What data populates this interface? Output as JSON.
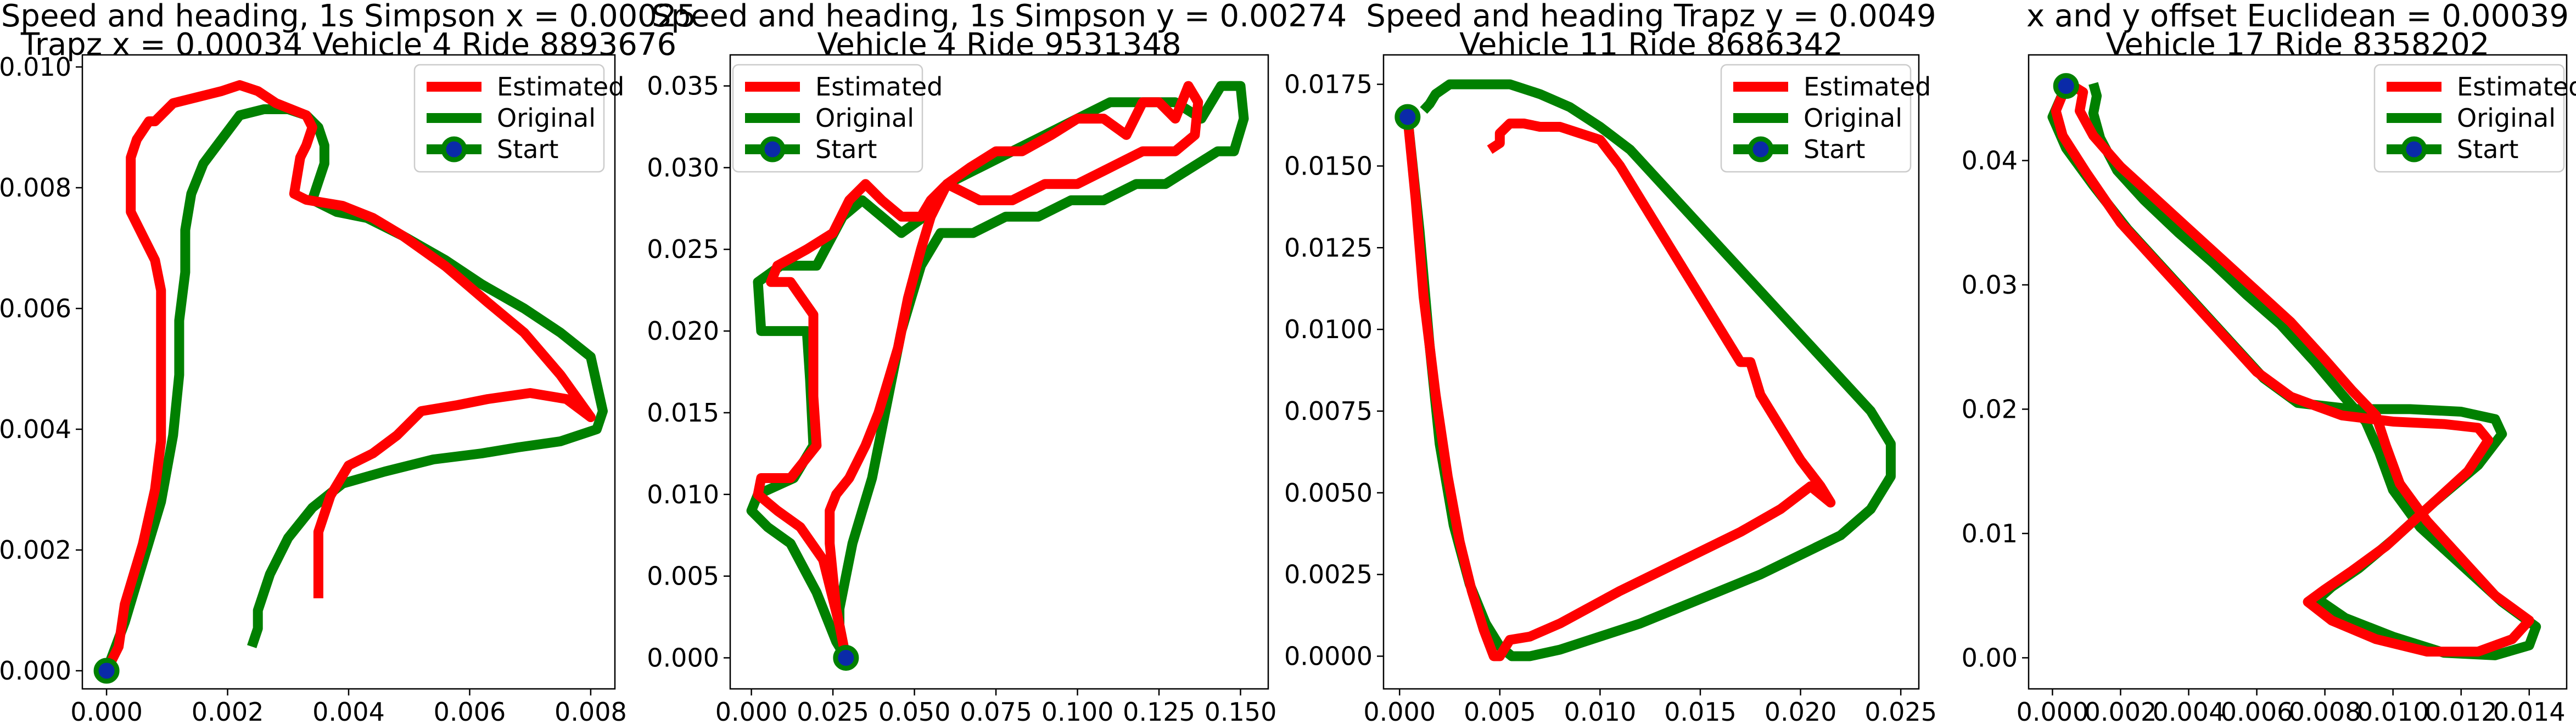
{
  "chart_data": [
    {
      "type": "line",
      "title": "Speed and heading, 1s Simpson x = 0.00025\nTrapz x = 0.00034 Vehicle 4 Ride 8893676",
      "xlim": [
        -0.0004,
        0.0084
      ],
      "ylim": [
        -0.0003,
        0.0102
      ],
      "xticks": [
        0.0,
        0.002,
        0.004,
        0.006,
        0.008
      ],
      "xtick_labels": [
        "0.000",
        "0.002",
        "0.004",
        "0.006",
        "0.008"
      ],
      "yticks": [
        0.0,
        0.002,
        0.004,
        0.006,
        0.008,
        0.01
      ],
      "ytick_labels": [
        "0.000",
        "0.002",
        "0.004",
        "0.006",
        "0.008",
        "0.010"
      ],
      "legend": {
        "position": "top-right",
        "entries": [
          "Estimated",
          "Original",
          "Start"
        ]
      },
      "series": [
        {
          "name": "Estimated",
          "color": "#ff0000",
          "x": [
            0.0,
            0.0002,
            0.0003,
            0.0006,
            0.0008,
            0.0009,
            0.0009,
            0.0009,
            0.0009,
            0.0008,
            0.0006,
            0.0004,
            0.0004,
            0.0004,
            0.0005,
            0.0007,
            0.0008,
            0.0011,
            0.0015,
            0.0019,
            0.0022,
            0.0025,
            0.0028,
            0.0033,
            0.0034,
            0.0033,
            0.0032,
            0.0031,
            0.0033,
            0.0039,
            0.0044,
            0.0049,
            0.0056,
            0.0063,
            0.0069,
            0.0075,
            0.008,
            0.0076,
            0.007,
            0.0063,
            0.0058,
            0.0052,
            0.0048,
            0.0044,
            0.004,
            0.0037,
            0.0035,
            0.0035
          ],
          "y": [
            0.0,
            0.0004,
            0.0011,
            0.0021,
            0.003,
            0.0038,
            0.0046,
            0.0055,
            0.0063,
            0.0068,
            0.0072,
            0.0076,
            0.0081,
            0.0085,
            0.0088,
            0.0091,
            0.0091,
            0.0094,
            0.0095,
            0.0096,
            0.0097,
            0.0096,
            0.0094,
            0.0092,
            0.009,
            0.0087,
            0.0085,
            0.0079,
            0.0078,
            0.0077,
            0.0075,
            0.0072,
            0.0067,
            0.0061,
            0.0056,
            0.0049,
            0.0042,
            0.0045,
            0.0046,
            0.0045,
            0.0044,
            0.0043,
            0.0039,
            0.0036,
            0.0034,
            0.0029,
            0.0023,
            0.0012
          ]
        },
        {
          "name": "Original",
          "color": "#008000",
          "x": [
            0.0,
            0.0003,
            0.0006,
            0.0009,
            0.0011,
            0.0012,
            0.0012,
            0.0013,
            0.0013,
            0.0014,
            0.0016,
            0.0019,
            0.0022,
            0.0026,
            0.003,
            0.0033,
            0.0035,
            0.0036,
            0.0036,
            0.0035,
            0.0034,
            0.0038,
            0.0043,
            0.0049,
            0.0056,
            0.0062,
            0.0069,
            0.0075,
            0.008,
            0.0082,
            0.0081,
            0.0075,
            0.0068,
            0.0062,
            0.0054,
            0.0046,
            0.0039,
            0.0034,
            0.003,
            0.0027,
            0.0025,
            0.0025,
            0.0024
          ],
          "y": [
            0.0,
            0.0008,
            0.0018,
            0.0028,
            0.0039,
            0.0049,
            0.0058,
            0.0066,
            0.0073,
            0.0079,
            0.0084,
            0.0088,
            0.0092,
            0.0093,
            0.0093,
            0.0092,
            0.009,
            0.0087,
            0.0084,
            0.0081,
            0.0078,
            0.0076,
            0.0075,
            0.0072,
            0.0068,
            0.0064,
            0.006,
            0.0056,
            0.0052,
            0.0043,
            0.004,
            0.0038,
            0.0037,
            0.0036,
            0.0035,
            0.0033,
            0.0031,
            0.0027,
            0.0022,
            0.0016,
            0.001,
            0.0007,
            0.0004
          ]
        }
      ],
      "start": {
        "x": 0.0,
        "y": 0.0
      }
    },
    {
      "type": "line",
      "title": "Speed and heading, 1s Simpson y = 0.00274\nVehicle 4 Ride 9531348",
      "xlim": [
        -0.0065,
        0.1585
      ],
      "ylim": [
        -0.0019,
        0.0369
      ],
      "xticks": [
        0.0,
        0.025,
        0.05,
        0.075,
        0.1,
        0.125,
        0.15
      ],
      "xtick_labels": [
        "0.000",
        "0.025",
        "0.050",
        "0.075",
        "0.100",
        "0.125",
        "0.150"
      ],
      "yticks": [
        0.0,
        0.005,
        0.01,
        0.015,
        0.02,
        0.025,
        0.03,
        0.035
      ],
      "ytick_labels": [
        "0.000",
        "0.005",
        "0.010",
        "0.015",
        "0.020",
        "0.025",
        "0.030",
        "0.035"
      ],
      "legend": {
        "position": "top-left",
        "entries": [
          "Estimated",
          "Original",
          "Start"
        ]
      },
      "series": [
        {
          "name": "Estimated",
          "color": "#ff0000",
          "x": [
            0.029,
            0.027,
            0.022,
            0.015,
            0.008,
            0.002,
            0.003,
            0.012,
            0.02,
            0.019,
            0.019,
            0.012,
            0.006,
            0.008,
            0.017,
            0.025,
            0.03,
            0.035,
            0.04,
            0.046,
            0.052,
            0.055,
            0.06,
            0.067,
            0.075,
            0.083,
            0.092,
            0.1,
            0.108,
            0.115,
            0.12,
            0.125,
            0.13,
            0.134,
            0.137,
            0.136,
            0.13,
            0.12,
            0.11,
            0.1,
            0.09,
            0.08,
            0.07,
            0.06,
            0.055,
            0.052,
            0.048,
            0.045,
            0.042,
            0.039,
            0.035,
            0.03,
            0.026,
            0.024,
            0.024,
            0.025,
            0.026,
            0.027,
            0.028,
            0.029
          ],
          "y": [
            0.0,
            0.002,
            0.006,
            0.008,
            0.009,
            0.01,
            0.011,
            0.011,
            0.013,
            0.016,
            0.021,
            0.023,
            0.023,
            0.024,
            0.025,
            0.026,
            0.028,
            0.029,
            0.028,
            0.027,
            0.027,
            0.028,
            0.029,
            0.03,
            0.031,
            0.031,
            0.032,
            0.033,
            0.033,
            0.032,
            0.034,
            0.034,
            0.033,
            0.035,
            0.034,
            0.032,
            0.031,
            0.031,
            0.03,
            0.029,
            0.029,
            0.028,
            0.028,
            0.029,
            0.027,
            0.025,
            0.022,
            0.019,
            0.017,
            0.015,
            0.013,
            0.011,
            0.01,
            0.009,
            0.007,
            0.005,
            0.003,
            0.002,
            0.001,
            0.0
          ]
        },
        {
          "name": "Original",
          "color": "#008000",
          "x": [
            0.029,
            0.026,
            0.02,
            0.012,
            0.005,
            0.0,
            0.002,
            0.013,
            0.019,
            0.018,
            0.017,
            0.01,
            0.003,
            0.002,
            0.009,
            0.02,
            0.028,
            0.034,
            0.04,
            0.046,
            0.053,
            0.06,
            0.07,
            0.08,
            0.09,
            0.1,
            0.11,
            0.12,
            0.13,
            0.138,
            0.144,
            0.15,
            0.151,
            0.148,
            0.143,
            0.135,
            0.127,
            0.118,
            0.108,
            0.098,
            0.088,
            0.078,
            0.068,
            0.058,
            0.052,
            0.049,
            0.046,
            0.043,
            0.04,
            0.037,
            0.034,
            0.031,
            0.029,
            0.028,
            0.027,
            0.027,
            0.028,
            0.029
          ],
          "y": [
            0.0,
            0.001,
            0.004,
            0.007,
            0.008,
            0.009,
            0.01,
            0.011,
            0.013,
            0.017,
            0.02,
            0.02,
            0.02,
            0.023,
            0.024,
            0.024,
            0.027,
            0.028,
            0.027,
            0.026,
            0.027,
            0.029,
            0.03,
            0.031,
            0.032,
            0.033,
            0.034,
            0.034,
            0.034,
            0.033,
            0.035,
            0.035,
            0.033,
            0.031,
            0.031,
            0.03,
            0.029,
            0.029,
            0.028,
            0.028,
            0.027,
            0.027,
            0.026,
            0.026,
            0.024,
            0.022,
            0.02,
            0.017,
            0.014,
            0.011,
            0.009,
            0.007,
            0.005,
            0.004,
            0.003,
            0.002,
            0.001,
            0.0
          ]
        }
      ],
      "start": {
        "x": 0.029,
        "y": 0.0
      }
    },
    {
      "type": "line",
      "title": "Speed and heading Trapz y = 0.0049\nVehicle 11 Ride 8686342",
      "xlim": [
        -0.0008,
        0.0259
      ],
      "ylim": [
        -0.001,
        0.0184
      ],
      "xticks": [
        0.0,
        0.005,
        0.01,
        0.015,
        0.02,
        0.025
      ],
      "xtick_labels": [
        "0.000",
        "0.005",
        "0.010",
        "0.015",
        "0.020",
        "0.025"
      ],
      "yticks": [
        0.0,
        0.0025,
        0.005,
        0.0075,
        0.01,
        0.0125,
        0.015,
        0.0175
      ],
      "ytick_labels": [
        "0.0000",
        "0.0025",
        "0.0050",
        "0.0075",
        "0.0100",
        "0.0125",
        "0.0150",
        "0.0175"
      ],
      "legend": {
        "position": "top-right",
        "entries": [
          "Estimated",
          "Original",
          "Start"
        ]
      },
      "series": [
        {
          "name": "Estimated",
          "color": "#ff0000",
          "x": [
            0.0004,
            0.0008,
            0.0012,
            0.0018,
            0.0024,
            0.003,
            0.0036,
            0.0042,
            0.0047,
            0.005,
            0.0055,
            0.0065,
            0.008,
            0.0095,
            0.011,
            0.013,
            0.015,
            0.017,
            0.019,
            0.0205,
            0.0215,
            0.021,
            0.02,
            0.019,
            0.018,
            0.0175,
            0.017,
            0.016,
            0.015,
            0.014,
            0.013,
            0.012,
            0.011,
            0.01,
            0.009,
            0.008,
            0.007,
            0.0062,
            0.0055,
            0.005,
            0.005,
            0.0045
          ],
          "y": [
            0.0165,
            0.014,
            0.011,
            0.008,
            0.0055,
            0.0035,
            0.002,
            0.0008,
            0.0,
            0.0,
            0.0005,
            0.0006,
            0.001,
            0.0015,
            0.002,
            0.0026,
            0.0032,
            0.0038,
            0.0045,
            0.0052,
            0.0047,
            0.0052,
            0.006,
            0.007,
            0.008,
            0.009,
            0.009,
            0.01,
            0.011,
            0.012,
            0.013,
            0.014,
            0.015,
            0.0158,
            0.016,
            0.0162,
            0.0162,
            0.0163,
            0.0163,
            0.016,
            0.0157,
            0.0155
          ]
        },
        {
          "name": "Original",
          "color": "#008000",
          "x": [
            0.0004,
            0.001,
            0.0015,
            0.002,
            0.0027,
            0.0035,
            0.0043,
            0.005,
            0.0056,
            0.0065,
            0.008,
            0.01,
            0.012,
            0.014,
            0.016,
            0.018,
            0.02,
            0.022,
            0.0235,
            0.0245,
            0.0245,
            0.0235,
            0.022,
            0.0205,
            0.019,
            0.0175,
            0.016,
            0.0145,
            0.013,
            0.0115,
            0.01,
            0.0085,
            0.007,
            0.0055,
            0.004,
            0.0025,
            0.0018,
            0.0015,
            0.0012
          ],
          "y": [
            0.0165,
            0.013,
            0.0095,
            0.0065,
            0.004,
            0.0022,
            0.001,
            0.0003,
            0.0,
            0.0,
            0.0002,
            0.0006,
            0.001,
            0.0015,
            0.002,
            0.0025,
            0.0031,
            0.0037,
            0.0045,
            0.0055,
            0.0065,
            0.0075,
            0.0085,
            0.0095,
            0.0105,
            0.0115,
            0.0125,
            0.0135,
            0.0145,
            0.0155,
            0.0162,
            0.0168,
            0.0172,
            0.0175,
            0.0175,
            0.0175,
            0.0172,
            0.0169,
            0.0167
          ]
        }
      ],
      "start": {
        "x": 0.0004,
        "y": 0.0165
      }
    },
    {
      "type": "line",
      "title": "x and y offset Euclidean = 0.00039\nVehicle 17 Ride 8358202",
      "xlim": [
        -0.0007,
        0.0151
      ],
      "ylim": [
        -0.0025,
        0.0485
      ],
      "xticks": [
        0.0,
        0.002,
        0.004,
        0.006,
        0.008,
        0.01,
        0.012,
        0.014
      ],
      "xtick_labels": [
        "0.000",
        "0.002",
        "0.004",
        "0.006",
        "0.008",
        "0.010",
        "0.012",
        "0.014"
      ],
      "yticks": [
        0.0,
        0.01,
        0.02,
        0.03,
        0.04
      ],
      "ytick_labels": [
        "0.00",
        "0.01",
        "0.02",
        "0.03",
        "0.04"
      ],
      "legend": {
        "position": "top-right",
        "entries": [
          "Estimated",
          "Original",
          "Start"
        ]
      },
      "series": [
        {
          "name": "Estimated",
          "color": "#ff0000",
          "x": [
            0.0004,
            0.0001,
            0.0003,
            0.001,
            0.002,
            0.003,
            0.004,
            0.005,
            0.006,
            0.007,
            0.0085,
            0.01,
            0.0115,
            0.0125,
            0.0128,
            0.0122,
            0.011,
            0.0098,
            0.0088,
            0.008,
            0.0075,
            0.0082,
            0.0095,
            0.011,
            0.0125,
            0.0135,
            0.014,
            0.013,
            0.012,
            0.011,
            0.0102,
            0.0098,
            0.0095,
            0.0088,
            0.008,
            0.007,
            0.006,
            0.005,
            0.004,
            0.003,
            0.002,
            0.0012,
            0.0008,
            0.0009,
            0.0006
          ],
          "y": [
            0.046,
            0.044,
            0.042,
            0.039,
            0.035,
            0.032,
            0.029,
            0.026,
            0.023,
            0.021,
            0.0195,
            0.019,
            0.0188,
            0.0185,
            0.0175,
            0.015,
            0.012,
            0.009,
            0.007,
            0.0055,
            0.0045,
            0.003,
            0.0015,
            0.0005,
            0.0005,
            0.0015,
            0.003,
            0.005,
            0.008,
            0.011,
            0.014,
            0.017,
            0.0195,
            0.0215,
            0.024,
            0.027,
            0.0295,
            0.032,
            0.0345,
            0.037,
            0.0395,
            0.042,
            0.044,
            0.0455,
            0.046
          ]
        },
        {
          "name": "Original",
          "color": "#008000",
          "x": [
            0.0004,
            0.0,
            0.0004,
            0.0012,
            0.0022,
            0.0032,
            0.0042,
            0.0052,
            0.0062,
            0.0072,
            0.0088,
            0.0105,
            0.012,
            0.013,
            0.0132,
            0.0125,
            0.0112,
            0.01,
            0.009,
            0.0082,
            0.0078,
            0.0086,
            0.01,
            0.0115,
            0.013,
            0.014,
            0.0142,
            0.0132,
            0.012,
            0.0108,
            0.01,
            0.0096,
            0.0092,
            0.0085,
            0.0077,
            0.0067,
            0.0057,
            0.0047,
            0.0037,
            0.0027,
            0.0019,
            0.0014,
            0.0012,
            0.0013,
            0.0012
          ],
          "y": [
            0.046,
            0.0435,
            0.041,
            0.038,
            0.0345,
            0.0315,
            0.0285,
            0.0255,
            0.0225,
            0.0205,
            0.02,
            0.02,
            0.0198,
            0.0192,
            0.018,
            0.0155,
            0.0125,
            0.0095,
            0.0072,
            0.0057,
            0.0047,
            0.0032,
            0.0017,
            0.0004,
            0.0002,
            0.001,
            0.0025,
            0.0045,
            0.0075,
            0.0105,
            0.0135,
            0.0165,
            0.019,
            0.0212,
            0.0238,
            0.0268,
            0.0292,
            0.0318,
            0.0342,
            0.0368,
            0.0392,
            0.0418,
            0.0438,
            0.0452,
            0.0462
          ]
        }
      ],
      "start": {
        "x": 0.0004,
        "y": 0.046
      }
    }
  ]
}
